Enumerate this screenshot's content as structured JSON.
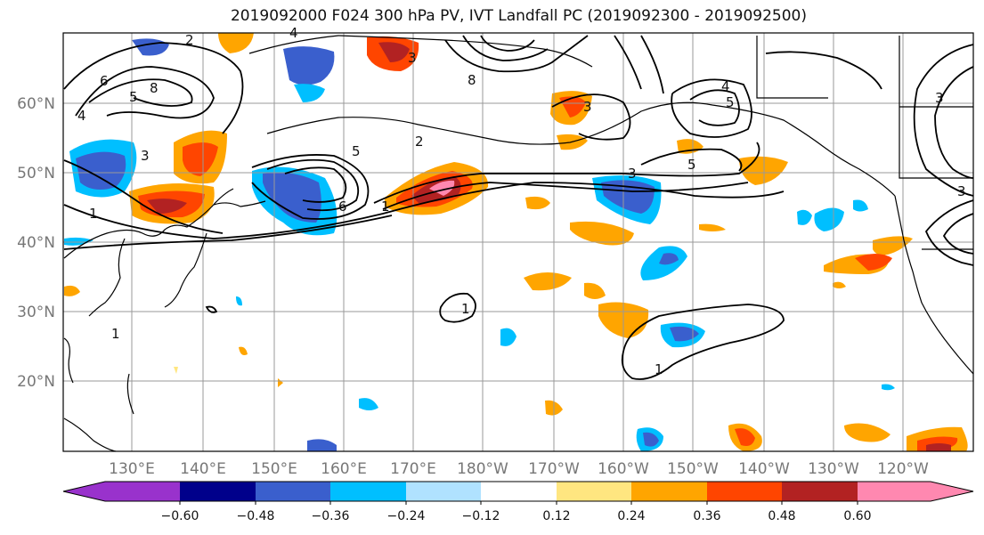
{
  "title": "2019092000 F024 300 hPa PV, IVT Landfall PC (2019092300 - 2019092500)",
  "lat_labels": [
    "60°N",
    "50°N",
    "40°N",
    "30°N",
    "20°N"
  ],
  "lon_labels": [
    "130°E",
    "140°E",
    "150°E",
    "160°E",
    "170°E",
    "180°W",
    "170°W",
    "160°W",
    "150°W",
    "140°W",
    "130°W",
    "120°W"
  ],
  "colorbar": {
    "ticks": [
      "−0.60",
      "−0.48",
      "−0.36",
      "−0.24",
      "−0.12",
      "0.12",
      "0.24",
      "0.36",
      "0.48",
      "0.60"
    ],
    "colors": [
      "#9932cc",
      "#00008b",
      "#3a5fcd",
      "#00bfff",
      "#b0e2ff",
      "#ffffff",
      "#ffe680",
      "#ffa500",
      "#ff4500",
      "#b22222",
      "#ff88b0"
    ]
  },
  "contour_labels": [
    "2",
    "4",
    "3",
    "6",
    "5",
    "8",
    "4",
    "3",
    "6",
    "5",
    "2",
    "1",
    "3",
    "5",
    "8",
    "3",
    "1",
    "1",
    "3",
    "4",
    "5",
    "3",
    "1",
    "1"
  ]
}
